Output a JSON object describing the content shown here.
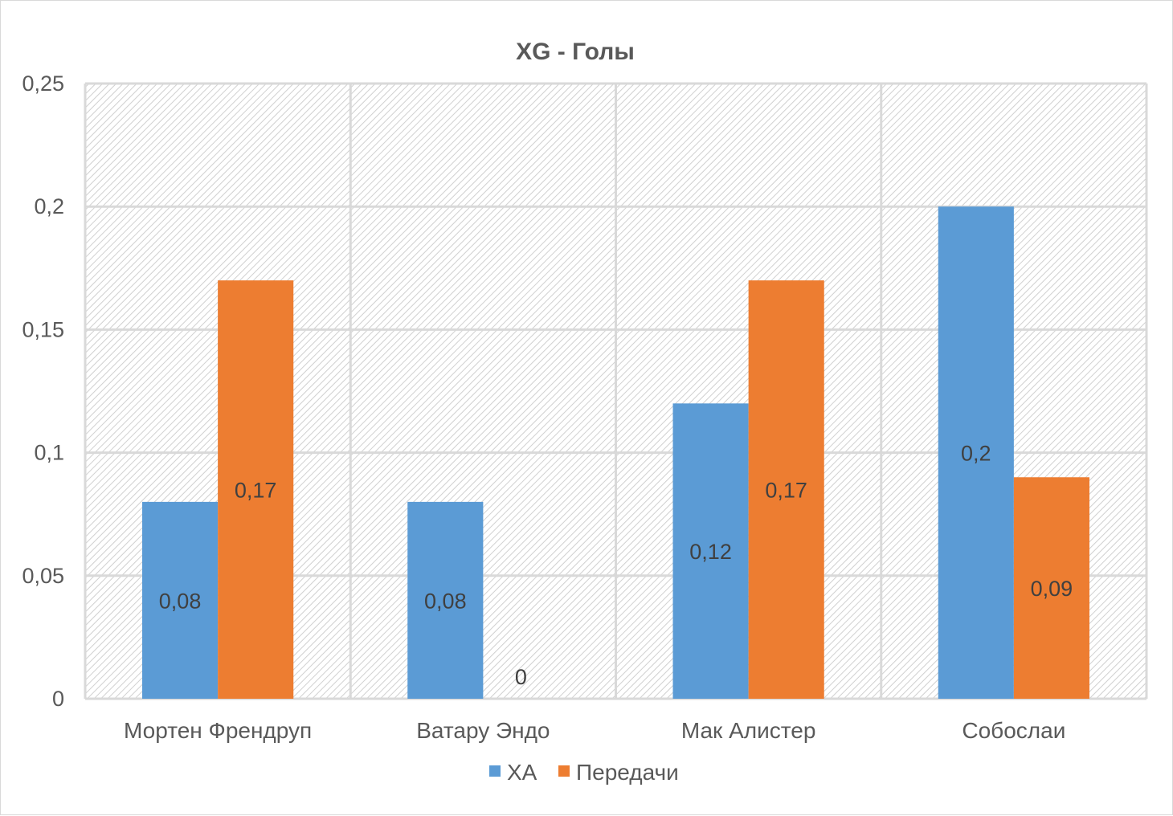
{
  "chart_data": {
    "type": "bar",
    "title": "XG - Голы",
    "categories": [
      "Мортен Френдруп",
      "Ватару Эндо",
      "Мак Алистер",
      "Собослаи"
    ],
    "series": [
      {
        "name": "XA",
        "values": [
          0.08,
          0.08,
          0.12,
          0.2
        ],
        "labels": [
          "0,08",
          "0,08",
          "0,12",
          "0,2"
        ],
        "color": "#5b9bd5"
      },
      {
        "name": "Передачи",
        "values": [
          0.17,
          0,
          0.17,
          0.09
        ],
        "labels": [
          "0,17",
          "0",
          "0,17",
          "0,09"
        ],
        "color": "#ed7d31"
      }
    ],
    "ylim": [
      0,
      0.25
    ],
    "yticks": [
      0,
      0.05,
      0.1,
      0.15,
      0.2,
      0.25
    ],
    "ytick_labels": [
      "0",
      "0,05",
      "0,1",
      "0,15",
      "0,2",
      "0,25"
    ],
    "grid": true,
    "legend_position": "bottom",
    "plot_background": "hatched"
  }
}
